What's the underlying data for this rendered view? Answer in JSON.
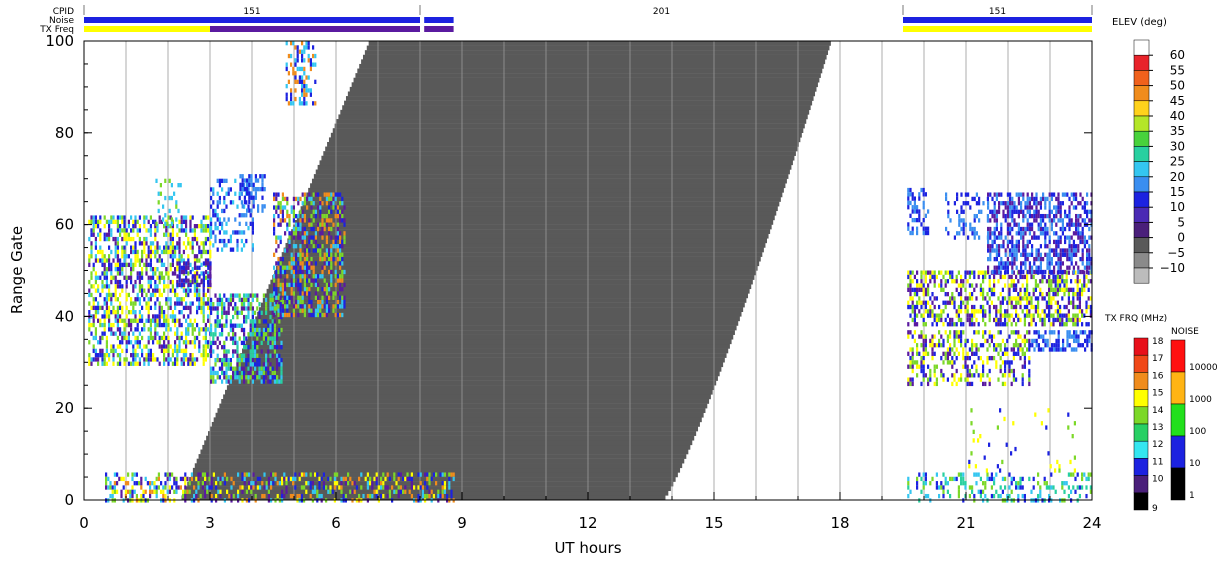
{
  "chart_data": {
    "type": "heatmap",
    "xlabel": "UT hours",
    "ylabel": "Range Gate",
    "xlim": [
      0,
      24
    ],
    "ylim": [
      0,
      100
    ],
    "xticks": [
      "0",
      "3",
      "6",
      "9",
      "12",
      "15",
      "18",
      "21",
      "24"
    ],
    "yticks": [
      "0",
      "20",
      "40",
      "60",
      "80",
      "100"
    ],
    "minor_x_ticks_every_hours": 1,
    "header": {
      "cpid_label": "CPID",
      "noise_label": "Noise",
      "txfreq_label": "TX Freq",
      "cpid_segments": [
        {
          "label": "151",
          "start": 0.0,
          "end": 8.0
        },
        {
          "label": "201",
          "start": 8.0,
          "end": 19.5
        },
        {
          "label": "151",
          "start": 19.5,
          "end": 24.0
        }
      ],
      "noise_bars": [
        {
          "start": 0.0,
          "end": 8.0,
          "color": "#1c22e0"
        },
        {
          "start": 8.1,
          "end": 8.8,
          "color": "#1c22e0"
        },
        {
          "start": 19.5,
          "end": 24.0,
          "color": "#1c22e0"
        }
      ],
      "txfreq_bars": [
        {
          "start": 0.0,
          "end": 3.0,
          "color": "#ffff00"
        },
        {
          "start": 3.0,
          "end": 8.0,
          "color": "#5a1aa0"
        },
        {
          "start": 8.1,
          "end": 8.8,
          "color": "#5a1aa0"
        },
        {
          "start": 19.5,
          "end": 24.0,
          "color": "#ffff00"
        }
      ]
    },
    "ground_scatter_region": {
      "color": "#595959",
      "bottom_left": [
        2.3,
        0
      ],
      "bottom_right": [
        13.8,
        0
      ],
      "top_left": [
        6.8,
        100
      ],
      "top_right": [
        17.8,
        100
      ]
    },
    "data_gap": {
      "start": 8.8,
      "end": 19.5
    },
    "scatter_patches": [
      {
        "x": [
          0.1,
          3.0
        ],
        "y": [
          30,
          62
        ],
        "colors": [
          "#1c22e0",
          "#5a1aa0",
          "#7cd828",
          "#ffff00",
          "#34c6f0"
        ],
        "density": 0.55
      },
      {
        "x": [
          2.2,
          3.0
        ],
        "y": [
          47,
          52
        ],
        "colors": [
          "#5a1aa0",
          "#1c22e0"
        ],
        "density": 0.5
      },
      {
        "x": [
          3.0,
          4.7
        ],
        "y": [
          26,
          45
        ],
        "colors": [
          "#1c22e0",
          "#34c6f0",
          "#28d0a0",
          "#7cd828",
          "#5a1aa0"
        ],
        "density": 0.6
      },
      {
        "x": [
          3.0,
          4.0
        ],
        "y": [
          55,
          70
        ],
        "colors": [
          "#34c6f0",
          "#1c22e0",
          "#3a8ef0"
        ],
        "density": 0.35
      },
      {
        "x": [
          3.7,
          4.3
        ],
        "y": [
          63,
          71
        ],
        "colors": [
          "#1c22e0",
          "#3a8ef0"
        ],
        "density": 0.55
      },
      {
        "x": [
          4.5,
          6.2
        ],
        "y": [
          40,
          67
        ],
        "colors": [
          "#f08c1c",
          "#5a1aa0",
          "#1c22e0",
          "#34c6f0",
          "#7cd828"
        ],
        "density": 0.55
      },
      {
        "x": [
          4.8,
          5.5
        ],
        "y": [
          86,
          100
        ],
        "colors": [
          "#1c22e0",
          "#34c6f0",
          "#f08c1c"
        ],
        "density": 0.35
      },
      {
        "x": [
          1.7,
          2.3
        ],
        "y": [
          60,
          70
        ],
        "colors": [
          "#34c6f0",
          "#7cd828"
        ],
        "density": 0.2
      },
      {
        "x": [
          0.5,
          8.8
        ],
        "y": [
          0,
          6
        ],
        "colors": [
          "#1c22e0",
          "#34c6f0",
          "#7cd828",
          "#ffff00",
          "#5a1aa0",
          "#f08c1c"
        ],
        "density": 0.45
      },
      {
        "x": [
          19.6,
          20.1
        ],
        "y": [
          58,
          68
        ],
        "colors": [
          "#1c22e0",
          "#3a8ef0"
        ],
        "density": 0.4
      },
      {
        "x": [
          19.6,
          24.0
        ],
        "y": [
          38,
          50
        ],
        "colors": [
          "#5a1aa0",
          "#1c22e0",
          "#7cd828",
          "#ffff00"
        ],
        "density": 0.55
      },
      {
        "x": [
          21.5,
          24.0
        ],
        "y": [
          50,
          67
        ],
        "colors": [
          "#1c22e0",
          "#3a8ef0",
          "#5a1aa0"
        ],
        "density": 0.6
      },
      {
        "x": [
          20.5,
          21.5
        ],
        "y": [
          57,
          67
        ],
        "colors": [
          "#1c22e0",
          "#3a8ef0"
        ],
        "density": 0.3
      },
      {
        "x": [
          19.6,
          22.5
        ],
        "y": [
          25,
          37
        ],
        "colors": [
          "#7cd828",
          "#ffff00",
          "#5a1aa0",
          "#1c22e0"
        ],
        "density": 0.45
      },
      {
        "x": [
          22.5,
          24.0
        ],
        "y": [
          33,
          37
        ],
        "colors": [
          "#3a8ef0",
          "#1c22e0"
        ],
        "density": 0.5
      },
      {
        "x": [
          19.6,
          24.0
        ],
        "y": [
          0,
          6
        ],
        "colors": [
          "#34c6f0",
          "#1c22e0",
          "#7cd828",
          "#28d0a0"
        ],
        "density": 0.3
      },
      {
        "x": [
          21.0,
          24.0
        ],
        "y": [
          6,
          20
        ],
        "colors": [
          "#7cd828",
          "#1c22e0",
          "#ffff00"
        ],
        "density": 0.05
      }
    ],
    "legends": {
      "elev": {
        "title": "ELEV (deg)",
        "labels": [
          "60",
          "55",
          "50",
          "45",
          "40",
          "35",
          "30",
          "25",
          "20",
          "15",
          "10",
          "5",
          "0",
          "−5",
          "−10"
        ],
        "colors": [
          "#ffffff",
          "#e8232a",
          "#f0611c",
          "#f08c1c",
          "#ffd21c",
          "#b4e628",
          "#48d23c",
          "#28d0a0",
          "#34c6f0",
          "#3a8ef0",
          "#1c22e0",
          "#4a2ab4",
          "#4a1f7a",
          "#595959",
          "#8a8a8a",
          "#bcbcbc"
        ]
      },
      "txfrq": {
        "title": "TX FRQ (MHz)",
        "labels": [
          "18",
          "17",
          "16",
          "15",
          "14",
          "13",
          "12",
          "11",
          "10",
          "9"
        ],
        "colors": [
          "#e8101a",
          "#f04818",
          "#f08c1c",
          "#ffff00",
          "#7cd828",
          "#28d064",
          "#34e6f0",
          "#1c22e0",
          "#4a1f7a",
          "#000000"
        ]
      },
      "noise": {
        "title": "NOISE",
        "labels": [
          "10000",
          "1000",
          "100",
          "10",
          "1"
        ],
        "colors": [
          "#ff1010",
          "#ffb414",
          "#22e01c",
          "#1c22e0",
          "#000000"
        ]
      }
    }
  }
}
